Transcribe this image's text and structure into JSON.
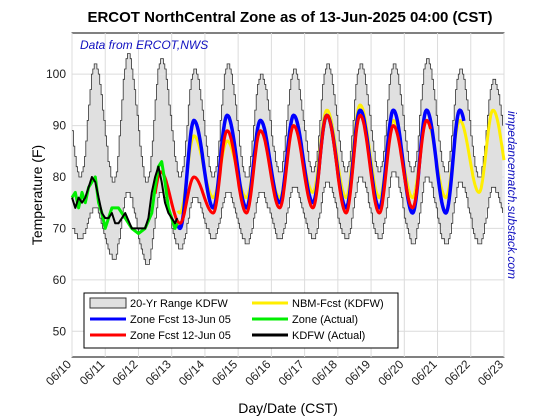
{
  "chart_data": {
    "type": "line",
    "title": "ERCOT NorthCentral Zone as of 13-Jun-2025 04:00 (CST)",
    "source_note": "Data from ERCOT,NWS",
    "watermark": "impedancematch.substack.com",
    "xlabel": "Day/Date (CST)",
    "ylabel": "Temperature (F)",
    "ylim": [
      45,
      108
    ],
    "yticks": [
      50,
      60,
      70,
      80,
      90,
      100
    ],
    "xlim": [
      0,
      13
    ],
    "xtick_labels": [
      "06/10",
      "06/11",
      "06/12",
      "06/13",
      "06/14",
      "06/15",
      "06/16",
      "06/17",
      "06/18",
      "06/19",
      "06/20",
      "06/21",
      "06/22",
      "06/23"
    ],
    "grid": true,
    "legend_position": "bottom-left",
    "range_band": {
      "name": "20-Yr Range KDFW",
      "color": "#e0e0e0",
      "days": [
        0,
        1,
        2,
        3,
        4,
        5,
        6,
        7,
        8,
        9,
        10,
        11,
        12
      ],
      "low_min": [
        68,
        64,
        63,
        66,
        68,
        67,
        68,
        68,
        68,
        68,
        67,
        67,
        67
      ],
      "low_max": [
        80,
        79,
        79,
        80,
        80,
        80,
        81,
        81,
        81,
        81,
        81,
        81,
        80
      ],
      "high_min": [
        74,
        77,
        77,
        76,
        77,
        77,
        78,
        79,
        80,
        81,
        80,
        79,
        78
      ],
      "high_max": [
        102,
        104,
        103,
        101,
        102,
        100,
        101,
        102,
        102,
        102,
        103,
        101,
        99
      ]
    },
    "series": [
      {
        "name": "Zone Fcst 13-Jun 05",
        "color": "#0000ff",
        "start_day": 3,
        "lows": [
          70,
          74,
          74,
          75,
          75,
          74,
          74,
          73,
          73
        ],
        "highs": [
          91,
          92,
          91,
          92,
          92,
          93,
          93,
          93,
          93
        ],
        "end_day": 11.8
      },
      {
        "name": "Zone Fcst 12-Jun 05",
        "color": "#ff0000",
        "start_day": 2,
        "lows": [
          69,
          71,
          73,
          73,
          74,
          74,
          73,
          73,
          74,
          75
        ],
        "highs": [
          81,
          80,
          89,
          89,
          90,
          92,
          92,
          90,
          91,
          91
        ],
        "end_day": 10.8
      },
      {
        "name": "NBM-Fcst (KDFW)",
        "color": "#ffee00",
        "start_day": 3,
        "lows": [
          73,
          76,
          76,
          76,
          77,
          76,
          76,
          76,
          76,
          77
        ],
        "highs": [
          88,
          87,
          89,
          90,
          93,
          94,
          91,
          91,
          91,
          93
        ],
        "end_day": 13
      },
      {
        "name": "Zone (Actual)",
        "color": "#00ee00",
        "x": [
          0,
          0.1,
          0.2,
          0.3,
          0.4,
          0.5,
          0.6,
          0.7,
          0.8,
          0.9,
          1.0,
          1.2,
          1.4,
          1.6,
          1.8,
          2.0,
          2.2,
          2.4,
          2.5,
          2.6,
          2.7,
          2.8,
          2.9,
          3.0,
          3.1,
          3.17
        ],
        "y": [
          76,
          77,
          74,
          77,
          75,
          78,
          79,
          80,
          75,
          73,
          70,
          74,
          74,
          72,
          70,
          69,
          70,
          73,
          78,
          82,
          83,
          79,
          74,
          72,
          70,
          71
        ]
      },
      {
        "name": "KDFW (Actual)",
        "color": "#000000",
        "x": [
          0,
          0.1,
          0.2,
          0.3,
          0.4,
          0.5,
          0.6,
          0.7,
          0.8,
          0.9,
          1.0,
          1.1,
          1.2,
          1.3,
          1.4,
          1.6,
          1.8,
          2.0,
          2.2,
          2.3,
          2.4,
          2.5,
          2.6,
          2.7,
          2.8,
          2.9,
          3.0,
          3.1,
          3.17
        ],
        "y": [
          76,
          74,
          76,
          75,
          76,
          78,
          80,
          79,
          76,
          73,
          72,
          72,
          73,
          71,
          71,
          73,
          70,
          70,
          70,
          72,
          77,
          80,
          82,
          79,
          75,
          73,
          72,
          71,
          72
        ]
      }
    ]
  }
}
